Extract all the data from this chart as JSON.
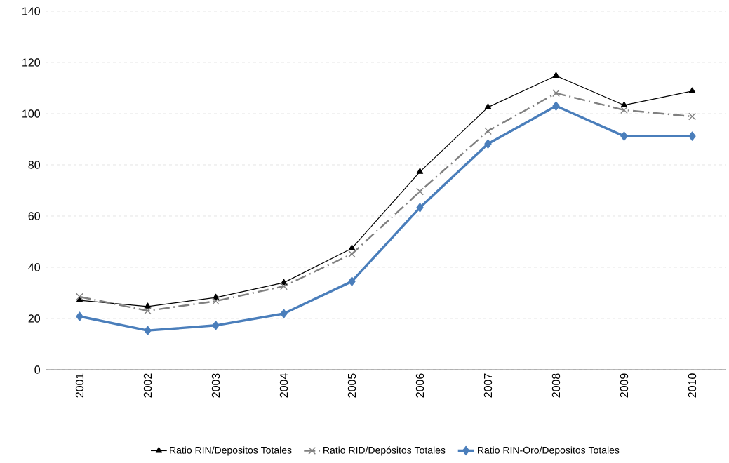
{
  "chart_data": {
    "type": "line",
    "categories": [
      "2001",
      "2002",
      "2003",
      "2004",
      "2005",
      "2006",
      "2007",
      "2008",
      "2009",
      "2010"
    ],
    "series": [
      {
        "name": "Ratio RIN/Depositos Totales",
        "color": "#000000",
        "marker": "triangle",
        "line_style": "solid",
        "values": [
          27.1,
          24.7,
          28.2,
          34,
          47.4,
          77.3,
          102.5,
          114.8,
          103.3,
          108.8
        ]
      },
      {
        "name": "Ratio RID/Depósitos Totales",
        "color": "#808080",
        "marker": "cross",
        "line_style": "dashed",
        "values": [
          28.5,
          23,
          26.8,
          32.6,
          45.2,
          69.6,
          93.2,
          108,
          101.4,
          98.9
        ]
      },
      {
        "name": "Ratio RIN-Oro/Depositos Totales",
        "color": "#4a7ebb",
        "marker": "diamond",
        "line_style": "solid",
        "values": [
          20.8,
          15.3,
          17.3,
          21.9,
          34.5,
          63.3,
          88.2,
          103,
          91.2,
          91.2
        ]
      }
    ],
    "ylim": [
      0,
      140
    ],
    "yticks": [
      0,
      20,
      40,
      60,
      80,
      100,
      120,
      140
    ],
    "grid": "y",
    "legend": "bottom"
  }
}
